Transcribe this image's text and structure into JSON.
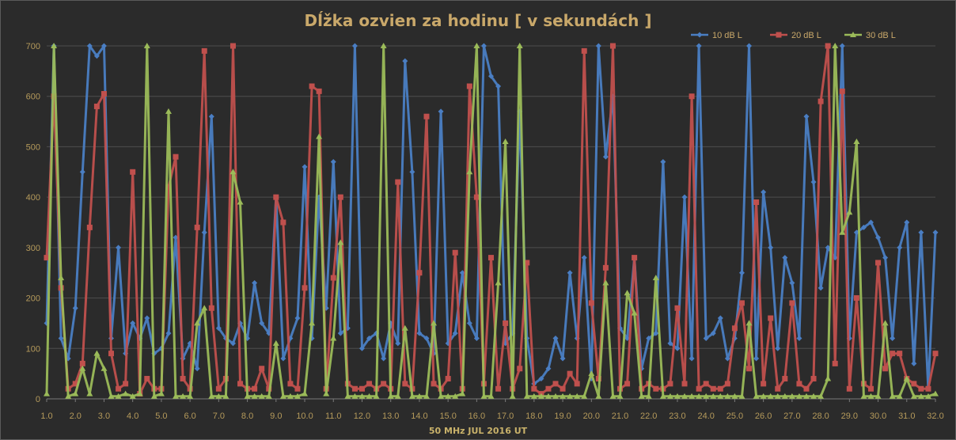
{
  "chart_data": {
    "type": "line",
    "title": "Dĺžka ozvien za hodinu [ v sekundách ]",
    "xlabel": "50 MHz  JUL  2016  UT",
    "ylabel": "",
    "xlim": [
      1.0,
      32.0
    ],
    "ylim": [
      0,
      700
    ],
    "x_ticks": [
      "1.0",
      "2.0",
      "3.0",
      "4.0",
      "5.0",
      "6.0",
      "7.0",
      "8.0",
      "9.0",
      "10.0",
      "11.0",
      "12.0",
      "13.0",
      "14.0",
      "15.0",
      "16.0",
      "17.0",
      "18.0",
      "19.0",
      "20.0",
      "21.0",
      "22.0",
      "23.0",
      "24.0",
      "25.0",
      "26.0",
      "27.0",
      "28.0",
      "29.0",
      "30.0",
      "31.0",
      "32.0"
    ],
    "y_ticks": [
      "0",
      "100",
      "200",
      "300",
      "400",
      "500",
      "600",
      "700"
    ],
    "grid": true,
    "legend_position": "top-right",
    "series": [
      {
        "name": "10 dB L",
        "color": "#4a7ec3",
        "marker": "diamond",
        "x": [
          1.0,
          1.25,
          1.5,
          1.75,
          2.0,
          2.25,
          2.5,
          2.75,
          3.0,
          3.25,
          3.5,
          3.75,
          4.0,
          4.25,
          4.5,
          4.75,
          5.0,
          5.25,
          5.5,
          5.75,
          6.0,
          6.25,
          6.5,
          6.75,
          7.0,
          7.25,
          7.5,
          7.75,
          8.0,
          8.25,
          8.5,
          8.75,
          9.0,
          9.25,
          9.5,
          9.75,
          10.0,
          10.25,
          10.5,
          10.75,
          11.0,
          11.25,
          11.5,
          11.75,
          12.0,
          12.25,
          12.5,
          12.75,
          13.0,
          13.25,
          13.5,
          13.75,
          14.0,
          14.25,
          14.5,
          14.75,
          15.0,
          15.25,
          15.5,
          15.75,
          16.0,
          16.25,
          16.5,
          16.75,
          17.0,
          17.25,
          17.5,
          17.75,
          18.0,
          18.25,
          18.5,
          18.75,
          19.0,
          19.25,
          19.5,
          19.75,
          20.0,
          20.25,
          20.5,
          20.75,
          21.0,
          21.25,
          21.5,
          21.75,
          22.0,
          22.25,
          22.5,
          22.75,
          23.0,
          23.25,
          23.5,
          23.75,
          24.0,
          24.25,
          24.5,
          24.75,
          25.0,
          25.25,
          25.5,
          25.75,
          26.0,
          26.25,
          26.5,
          26.75,
          27.0,
          27.25,
          27.5,
          27.75,
          28.0,
          28.25,
          28.5,
          28.75,
          29.0,
          29.25,
          29.5,
          29.75,
          30.0,
          30.25,
          30.5,
          30.75,
          31.0,
          31.25,
          31.5,
          31.75,
          32.0
        ],
        "values": [
          150,
          700,
          120,
          80,
          180,
          450,
          700,
          680,
          700,
          120,
          300,
          90,
          150,
          120,
          160,
          90,
          100,
          130,
          320,
          80,
          110,
          60,
          330,
          560,
          140,
          120,
          110,
          150,
          120,
          230,
          150,
          130,
          400,
          80,
          120,
          160,
          460,
          120,
          400,
          180,
          470,
          130,
          140,
          700,
          100,
          120,
          130,
          80,
          150,
          110,
          670,
          450,
          130,
          120,
          90,
          570,
          110,
          130,
          250,
          150,
          120,
          700,
          640,
          620,
          110,
          130,
          570,
          120,
          30,
          40,
          60,
          120,
          80,
          250,
          120,
          280,
          40,
          700,
          480,
          600,
          140,
          120,
          280,
          60,
          120,
          130,
          470,
          110,
          100,
          400,
          80,
          700,
          120,
          130,
          160,
          80,
          120,
          250,
          700,
          80,
          410,
          300,
          100,
          280,
          230,
          120,
          560,
          430,
          220,
          300,
          280,
          700,
          120,
          330,
          340,
          350,
          320,
          280,
          120,
          300,
          350,
          70,
          330,
          20,
          330
        ]
      },
      {
        "name": "20 dB L",
        "color": "#c0504d",
        "marker": "square",
        "x": [
          1.0,
          1.25,
          1.5,
          1.75,
          2.0,
          2.25,
          2.5,
          2.75,
          3.0,
          3.25,
          3.5,
          3.75,
          4.0,
          4.25,
          4.5,
          4.75,
          5.0,
          5.25,
          5.5,
          5.75,
          6.0,
          6.25,
          6.5,
          6.75,
          7.0,
          7.25,
          7.5,
          7.75,
          8.0,
          8.25,
          8.5,
          8.75,
          9.0,
          9.25,
          9.5,
          9.75,
          10.0,
          10.25,
          10.5,
          10.75,
          11.0,
          11.25,
          11.5,
          11.75,
          12.0,
          12.25,
          12.5,
          12.75,
          13.0,
          13.25,
          13.5,
          13.75,
          14.0,
          14.25,
          14.5,
          14.75,
          15.0,
          15.25,
          15.5,
          15.75,
          16.0,
          16.25,
          16.5,
          16.75,
          17.0,
          17.25,
          17.5,
          17.75,
          18.0,
          18.25,
          18.5,
          18.75,
          19.0,
          19.25,
          19.5,
          19.75,
          20.0,
          20.25,
          20.5,
          20.75,
          21.0,
          21.25,
          21.5,
          21.75,
          22.0,
          22.25,
          22.5,
          22.75,
          23.0,
          23.25,
          23.5,
          23.75,
          24.0,
          24.25,
          24.5,
          24.75,
          25.0,
          25.25,
          25.5,
          25.75,
          26.0,
          26.25,
          26.5,
          26.75,
          27.0,
          27.25,
          27.5,
          27.75,
          28.0,
          28.25,
          28.5,
          28.75,
          29.0,
          29.25,
          29.5,
          29.75,
          30.0,
          30.25,
          30.5,
          30.75,
          31.0,
          31.25,
          31.5,
          31.75,
          32.0
        ],
        "values": [
          280,
          600,
          220,
          20,
          30,
          70,
          340,
          580,
          605,
          90,
          20,
          30,
          450,
          10,
          40,
          20,
          20,
          420,
          480,
          40,
          20,
          340,
          690,
          180,
          20,
          40,
          700,
          30,
          20,
          20,
          60,
          20,
          400,
          350,
          30,
          20,
          220,
          620,
          610,
          20,
          240,
          400,
          30,
          20,
          20,
          30,
          20,
          30,
          20,
          430,
          30,
          20,
          250,
          560,
          30,
          20,
          40,
          290,
          20,
          620,
          400,
          30,
          280,
          20,
          150,
          20,
          60,
          270,
          20,
          10,
          20,
          30,
          20,
          50,
          30,
          690,
          190,
          40,
          260,
          700,
          20,
          30,
          280,
          20,
          30,
          20,
          20,
          30,
          180,
          30,
          600,
          20,
          30,
          20,
          20,
          30,
          140,
          190,
          60,
          390,
          30,
          160,
          20,
          40,
          190,
          30,
          20,
          40,
          590,
          700,
          70,
          610,
          20,
          200,
          30,
          20,
          270,
          60,
          90,
          90,
          40,
          30,
          20,
          20,
          90
        ]
      },
      {
        "name": "30 dB L",
        "color": "#9bbb59",
        "marker": "triangle",
        "x": [
          1.0,
          1.25,
          1.5,
          1.75,
          2.0,
          2.25,
          2.5,
          2.75,
          3.0,
          3.25,
          3.5,
          3.75,
          4.0,
          4.25,
          4.5,
          4.75,
          5.0,
          5.25,
          5.5,
          5.75,
          6.0,
          6.25,
          6.5,
          6.75,
          7.0,
          7.25,
          7.5,
          7.75,
          8.0,
          8.25,
          8.5,
          8.75,
          9.0,
          9.25,
          9.5,
          9.75,
          10.0,
          10.25,
          10.5,
          10.75,
          11.0,
          11.25,
          11.5,
          11.75,
          12.0,
          12.25,
          12.5,
          12.75,
          13.0,
          13.25,
          13.5,
          13.75,
          14.0,
          14.25,
          14.5,
          14.75,
          15.0,
          15.25,
          15.5,
          15.75,
          16.0,
          16.25,
          16.5,
          16.75,
          17.0,
          17.25,
          17.5,
          17.75,
          18.0,
          18.25,
          18.5,
          18.75,
          19.0,
          19.25,
          19.5,
          19.75,
          20.0,
          20.25,
          20.5,
          20.75,
          21.0,
          21.25,
          21.5,
          21.75,
          22.0,
          22.25,
          22.5,
          22.75,
          23.0,
          23.25,
          23.5,
          23.75,
          24.0,
          24.25,
          24.5,
          24.75,
          25.0,
          25.25,
          25.5,
          25.75,
          26.0,
          26.25,
          26.5,
          26.75,
          27.0,
          27.25,
          27.5,
          27.75,
          28.0,
          28.25,
          28.5,
          28.75,
          29.0,
          29.25,
          29.5,
          29.75,
          30.0,
          30.25,
          30.5,
          30.75,
          31.0,
          31.25,
          31.5,
          31.75,
          32.0
        ],
        "values": [
          10,
          700,
          240,
          5,
          10,
          60,
          10,
          90,
          60,
          5,
          5,
          10,
          5,
          10,
          700,
          5,
          10,
          570,
          5,
          5,
          5,
          150,
          180,
          5,
          5,
          5,
          450,
          390,
          5,
          5,
          5,
          5,
          110,
          5,
          5,
          5,
          10,
          150,
          520,
          10,
          120,
          310,
          5,
          5,
          5,
          5,
          5,
          700,
          5,
          5,
          140,
          5,
          5,
          5,
          150,
          5,
          5,
          5,
          10,
          450,
          700,
          5,
          5,
          230,
          510,
          5,
          700,
          5,
          5,
          5,
          5,
          5,
          5,
          5,
          5,
          5,
          50,
          5,
          230,
          5,
          5,
          210,
          170,
          5,
          5,
          240,
          5,
          5,
          5,
          5,
          5,
          5,
          5,
          5,
          5,
          5,
          5,
          5,
          150,
          5,
          5,
          5,
          5,
          5,
          5,
          5,
          5,
          5,
          5,
          40,
          700,
          330,
          370,
          510,
          5,
          5,
          5,
          150,
          5,
          5,
          40,
          5,
          5,
          5,
          10
        ]
      }
    ]
  }
}
